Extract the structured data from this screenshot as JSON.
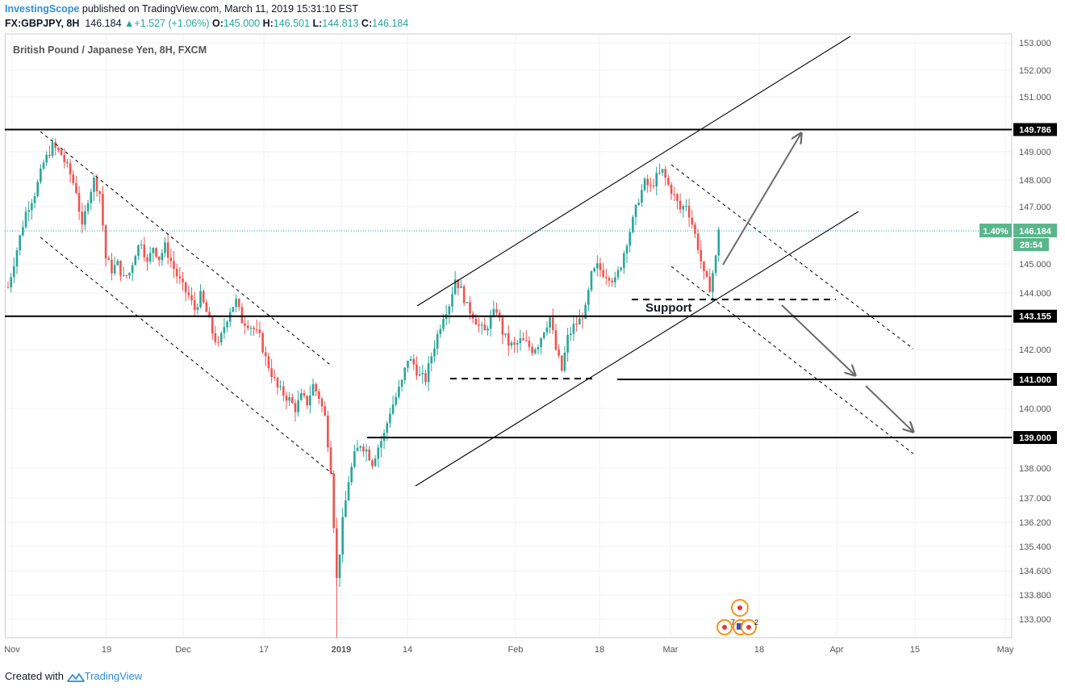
{
  "header": {
    "publisher": "InvestingScope",
    "published_text": " published on TradingView.com, March 11, 2019 15:31:10 EST",
    "symbol_line": "FX:GBPJPY, 8H",
    "last": "146.184",
    "change": "+1.527 (+1.06%)",
    "o_label": "O:",
    "o_value": "145.000",
    "h_label": "H:",
    "h_value": "146.501",
    "l_label": "L:",
    "l_value": "144.813",
    "c_label": "C:",
    "c_value": "146.184"
  },
  "footer": {
    "created_with": "Created with",
    "brand": "TradingView"
  },
  "colors": {
    "up": "#26a69a",
    "down": "#ef5350",
    "text": "#131722",
    "grid": "#eef1f4",
    "price_tag": "#5ab68c",
    "brand_blue": "#2f8fd8",
    "arrow": "#6b6b6b"
  },
  "chart_data": {
    "type": "candlestick",
    "title": "British Pound / Japanese Yen, 8H, FXCM",
    "y_ticks": [
      153.0,
      152.0,
      151.0,
      149.0,
      148.0,
      147.0,
      145.0,
      144.0,
      142.0,
      140.0,
      138.0,
      137.0,
      136.2,
      135.4,
      134.6,
      133.8,
      133.0
    ],
    "y_tick_labels": [
      "153.000",
      "152.000",
      "151.000",
      "149.000",
      "148.000",
      "147.000",
      "145.000",
      "144.000",
      "142.000",
      "140.000",
      "138.000",
      "137.000",
      "136.200",
      "135.400",
      "134.600",
      "133.800",
      "133.000"
    ],
    "x_ticks": [
      "Nov",
      "19",
      "Dec",
      "17",
      "2019",
      "14",
      "Feb",
      "18",
      "Mar",
      "18",
      "Apr",
      "15",
      "May"
    ],
    "horizontal_levels": [
      {
        "value": 149.786,
        "label": "149.786"
      },
      {
        "value": 143.155,
        "label": "143.155"
      },
      {
        "value": 141.0,
        "label": "141.000"
      },
      {
        "value": 139.0,
        "label": "139.000"
      }
    ],
    "last_price": {
      "value": 146.184,
      "label": "146.184",
      "percent": "1.40%",
      "countdown": "28:54"
    },
    "annotation": "Support",
    "event_badges": [
      "7",
      "2"
    ],
    "path": [
      [
        0,
        144.2
      ],
      [
        3,
        145.5
      ],
      [
        6,
        146.8
      ],
      [
        9,
        147.5
      ],
      [
        12,
        148.6
      ],
      [
        15,
        149.2
      ],
      [
        18,
        148.9
      ],
      [
        21,
        148.2
      ],
      [
        23,
        147.6
      ],
      [
        25,
        146.2
      ],
      [
        27,
        147.3
      ],
      [
        29,
        148.0
      ],
      [
        31,
        147.5
      ],
      [
        33,
        145.2
      ],
      [
        35,
        144.8
      ],
      [
        37,
        145.0
      ],
      [
        39,
        144.5
      ],
      [
        41,
        144.7
      ],
      [
        43,
        145.4
      ],
      [
        45,
        145.8
      ],
      [
        47,
        145.0
      ],
      [
        49,
        145.6
      ],
      [
        51,
        145.2
      ],
      [
        53,
        145.6
      ],
      [
        55,
        145.1
      ],
      [
        57,
        144.6
      ],
      [
        59,
        144.2
      ],
      [
        61,
        143.9
      ],
      [
        63,
        143.4
      ],
      [
        65,
        143.9
      ],
      [
        67,
        143.3
      ],
      [
        69,
        142.6
      ],
      [
        71,
        142.1
      ],
      [
        73,
        142.8
      ],
      [
        75,
        143.4
      ],
      [
        77,
        143.7
      ],
      [
        79,
        143.0
      ],
      [
        81,
        142.9
      ],
      [
        83,
        142.7
      ],
      [
        85,
        142.4
      ],
      [
        87,
        141.7
      ],
      [
        89,
        141.2
      ],
      [
        91,
        140.7
      ],
      [
        93,
        140.5
      ],
      [
        95,
        140.3
      ],
      [
        97,
        140.0
      ],
      [
        99,
        140.4
      ],
      [
        101,
        140.2
      ],
      [
        103,
        140.8
      ],
      [
        105,
        140.4
      ],
      [
        107,
        139.7
      ],
      [
        109,
        138.0
      ],
      [
        111,
        134.3
      ],
      [
        113,
        136.2
      ],
      [
        115,
        137.6
      ],
      [
        117,
        138.4
      ],
      [
        119,
        138.8
      ],
      [
        121,
        138.6
      ],
      [
        123,
        138.2
      ],
      [
        125,
        138.7
      ],
      [
        127,
        139.1
      ],
      [
        129,
        139.9
      ],
      [
        131,
        140.4
      ],
      [
        133,
        140.9
      ],
      [
        135,
        141.7
      ],
      [
        137,
        141.5
      ],
      [
        139,
        141.1
      ],
      [
        141,
        141.0
      ],
      [
        143,
        141.8
      ],
      [
        145,
        142.5
      ],
      [
        147,
        143.2
      ],
      [
        149,
        143.6
      ],
      [
        151,
        144.5
      ],
      [
        153,
        144.1
      ],
      [
        155,
        143.5
      ],
      [
        157,
        143.2
      ],
      [
        159,
        142.8
      ],
      [
        161,
        142.6
      ],
      [
        163,
        143.1
      ],
      [
        165,
        143.4
      ],
      [
        167,
        142.6
      ],
      [
        169,
        142.2
      ],
      [
        171,
        142.1
      ],
      [
        173,
        142.3
      ],
      [
        175,
        142.2
      ],
      [
        177,
        142.0
      ],
      [
        179,
        142.2
      ],
      [
        181,
        142.7
      ],
      [
        183,
        143.1
      ],
      [
        185,
        142.0
      ],
      [
        187,
        141.3
      ],
      [
        189,
        142.4
      ],
      [
        191,
        142.8
      ],
      [
        193,
        143.0
      ],
      [
        195,
        143.4
      ],
      [
        197,
        144.6
      ],
      [
        199,
        144.9
      ],
      [
        201,
        144.7
      ],
      [
        203,
        144.6
      ],
      [
        205,
        144.4
      ],
      [
        207,
        145.0
      ],
      [
        209,
        145.8
      ],
      [
        211,
        146.5
      ],
      [
        213,
        147.3
      ],
      [
        215,
        147.9
      ],
      [
        217,
        147.7
      ],
      [
        219,
        148.1
      ],
      [
        221,
        148.3
      ],
      [
        223,
        147.8
      ],
      [
        225,
        147.4
      ],
      [
        227,
        146.9
      ],
      [
        229,
        147.1
      ],
      [
        231,
        146.4
      ],
      [
        233,
        145.6
      ],
      [
        235,
        144.6
      ],
      [
        237,
        144.2
      ],
      [
        239,
        145.2
      ],
      [
        240,
        146.184
      ]
    ]
  }
}
